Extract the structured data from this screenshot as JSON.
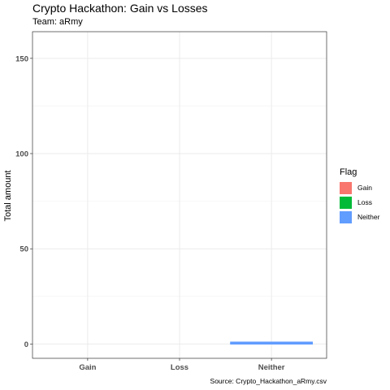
{
  "chart_data": {
    "type": "bar",
    "title": "Crypto Hackathon: Gain vs Losses",
    "subtitle": "Team: aRmy",
    "ylabel": "Total amount",
    "xlabel": "",
    "caption": "Source: Crypto_Hackathon_aRmy.csv",
    "categories": [
      "Gain",
      "Loss",
      "Neither"
    ],
    "values": [
      0,
      0,
      1
    ],
    "bar_colors": [
      "#F8766D",
      "#00BA38",
      "#619CFF"
    ],
    "ylim": [
      -7.5,
      164
    ],
    "yticks": [
      0,
      50,
      100,
      150
    ],
    "ytick_labels": [
      "0",
      "50",
      "100",
      "150"
    ],
    "grid": true,
    "legend": {
      "title": "Flag",
      "position": "right",
      "items": [
        {
          "label": "Gain",
          "color": "#F8766D"
        },
        {
          "label": "Loss",
          "color": "#00BA38"
        },
        {
          "label": "Neither",
          "color": "#619CFF"
        }
      ]
    }
  }
}
